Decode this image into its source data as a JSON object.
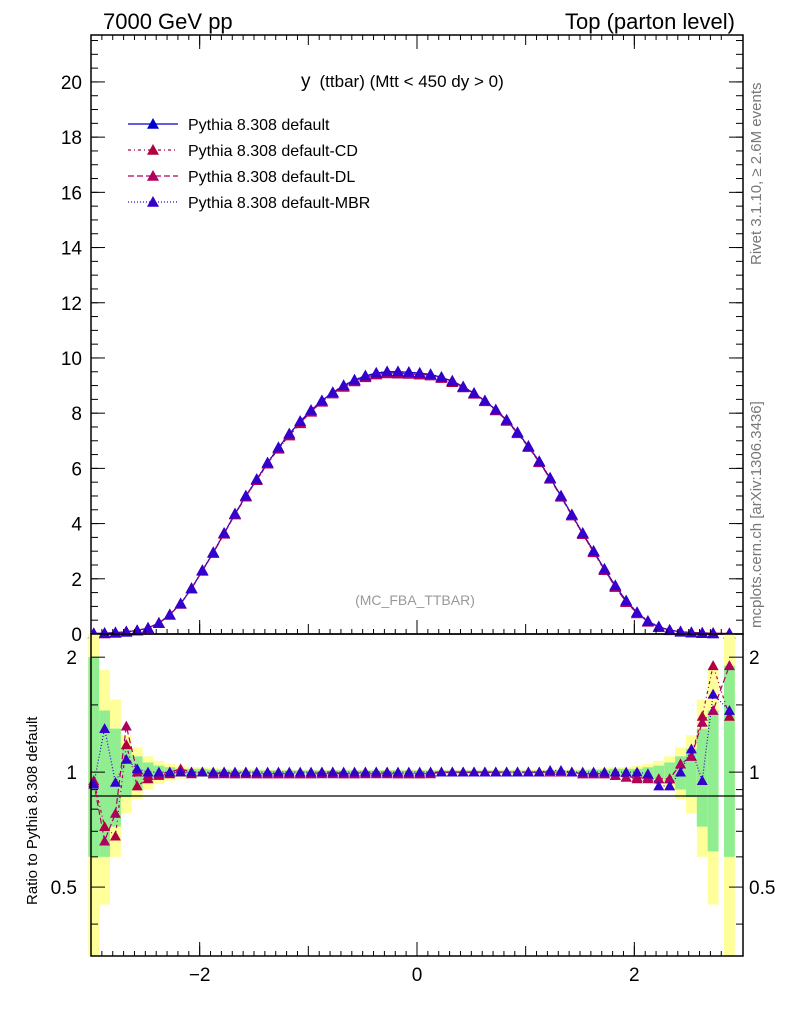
{
  "header": {
    "left": "7000 GeV pp",
    "right": "Top (parton level)"
  },
  "side_text": {
    "rivet": "Rivet 3.1.10, ≥ 2.6M events",
    "mcplots": "mcplots.cern.ch [arXiv:1306.3436]"
  },
  "plot_title": {
    "main": "y",
    "sub": "(ttbar) (Mtt < 450 dy > 0)"
  },
  "watermark": "(MC_FBA_TTBAR)",
  "ratio_ylabel": "Ratio to Pythia 8.308 default",
  "legend": [
    {
      "label": "Pythia 8.308 default",
      "color": "#0000cc",
      "dash": ""
    },
    {
      "label": "Pythia 8.308 default-CD",
      "color": "#b00040",
      "dash": "3,3,1,3"
    },
    {
      "label": "Pythia 8.308 default-DL",
      "color": "#b00060",
      "dash": "6,3"
    },
    {
      "label": "Pythia 8.308 default-MBR",
      "color": "#3300cc",
      "dash": "1,2"
    }
  ],
  "chart_data": {
    "type": "line",
    "xlim": [
      -3.0,
      3.0
    ],
    "main_ylim": [
      0,
      21.7
    ],
    "main_yticks": [
      0,
      2,
      4,
      6,
      8,
      10,
      12,
      14,
      16,
      18,
      20
    ],
    "xticks": [
      -2,
      0,
      2
    ],
    "ratio_ylim": [
      0.33,
      2.3
    ],
    "ratio_ylog": true,
    "ratio_yticks": [
      0.5,
      1,
      2
    ],
    "ratio_band_inner_color": "#90ee90",
    "ratio_band_outer_color": "#ffff99",
    "x": [
      -2.975,
      -2.875,
      -2.775,
      -2.675,
      -2.575,
      -2.475,
      -2.375,
      -2.275,
      -2.175,
      -2.075,
      -1.975,
      -1.875,
      -1.775,
      -1.675,
      -1.575,
      -1.475,
      -1.375,
      -1.275,
      -1.175,
      -1.075,
      -0.975,
      -0.875,
      -0.775,
      -0.675,
      -0.575,
      -0.475,
      -0.375,
      -0.275,
      -0.175,
      -0.075,
      0.025,
      0.125,
      0.225,
      0.325,
      0.425,
      0.525,
      0.625,
      0.725,
      0.825,
      0.925,
      1.025,
      1.125,
      1.225,
      1.325,
      1.425,
      1.525,
      1.625,
      1.725,
      1.825,
      1.925,
      2.025,
      2.125,
      2.225,
      2.325,
      2.425,
      2.525,
      2.625,
      2.725,
      2.875
    ],
    "series": [
      {
        "name": "Pythia 8.308 default",
        "color": "#0000cc",
        "values": [
          0.02,
          0.03,
          0.05,
          0.08,
          0.13,
          0.22,
          0.4,
          0.7,
          1.1,
          1.65,
          2.3,
          2.95,
          3.65,
          4.35,
          5.0,
          5.6,
          6.2,
          6.75,
          7.25,
          7.7,
          8.1,
          8.45,
          8.75,
          9.0,
          9.2,
          9.35,
          9.45,
          9.5,
          9.5,
          9.48,
          9.45,
          9.4,
          9.3,
          9.15,
          8.95,
          8.72,
          8.45,
          8.12,
          7.75,
          7.3,
          6.8,
          6.25,
          5.65,
          5.0,
          4.32,
          3.65,
          3.0,
          2.35,
          1.75,
          1.2,
          0.78,
          0.46,
          0.26,
          0.14,
          0.08,
          0.05,
          0.03,
          0.02,
          0.01
        ]
      },
      {
        "name": "Pythia 8.308 default-CD",
        "color": "#b00040",
        "values": [
          0.019,
          0.022,
          0.045,
          0.09,
          0.12,
          0.21,
          0.39,
          0.69,
          1.1,
          1.64,
          2.29,
          2.94,
          3.64,
          4.33,
          4.98,
          5.57,
          6.17,
          6.72,
          7.19,
          7.63,
          8.05,
          8.42,
          8.72,
          8.96,
          9.16,
          9.32,
          9.42,
          9.46,
          9.45,
          9.43,
          9.4,
          9.36,
          9.27,
          9.12,
          8.93,
          8.7,
          8.43,
          8.1,
          7.73,
          7.28,
          6.78,
          6.23,
          5.63,
          4.98,
          4.3,
          3.62,
          2.96,
          2.31,
          1.71,
          1.16,
          0.75,
          0.45,
          0.25,
          0.14,
          0.085,
          0.055,
          0.04,
          0.03,
          0.02
        ]
      },
      {
        "name": "Pythia 8.308 default-DL",
        "color": "#b00060",
        "values": [
          0.02,
          0.025,
          0.04,
          0.085,
          0.125,
          0.215,
          0.39,
          0.7,
          1.09,
          1.64,
          2.29,
          2.93,
          3.63,
          4.33,
          4.98,
          5.58,
          6.18,
          6.71,
          7.2,
          7.64,
          8.06,
          8.41,
          8.71,
          8.95,
          9.15,
          9.3,
          9.4,
          9.44,
          9.43,
          9.42,
          9.4,
          9.38,
          9.28,
          9.18,
          8.96,
          8.71,
          8.44,
          8.11,
          7.72,
          7.27,
          6.77,
          6.22,
          5.62,
          4.97,
          4.29,
          3.62,
          2.97,
          2.32,
          1.7,
          1.15,
          0.75,
          0.44,
          0.25,
          0.135,
          0.085,
          0.055,
          0.04,
          0.03,
          0.02
        ]
      },
      {
        "name": "Pythia 8.308 default-MBR",
        "color": "#3300cc",
        "values": [
          0.02,
          0.032,
          0.055,
          0.08,
          0.13,
          0.22,
          0.4,
          0.7,
          1.1,
          1.66,
          2.31,
          2.96,
          3.66,
          4.36,
          5.01,
          5.61,
          6.21,
          6.76,
          7.26,
          7.71,
          8.11,
          8.46,
          8.76,
          9.01,
          9.21,
          9.36,
          9.46,
          9.51,
          9.51,
          9.49,
          9.46,
          9.41,
          9.31,
          9.16,
          8.96,
          8.73,
          8.46,
          8.13,
          7.76,
          7.31,
          6.81,
          6.26,
          5.66,
          5.01,
          4.33,
          3.66,
          3.01,
          2.36,
          1.76,
          1.21,
          0.79,
          0.47,
          0.27,
          0.145,
          0.085,
          0.055,
          0.035,
          0.025,
          0.014
        ]
      }
    ],
    "ratio_series": [
      {
        "name": "Pythia 8.308 default-CD",
        "color": "#b00040",
        "values": [
          0.95,
          0.72,
          0.68,
          1.18,
          0.92,
          0.96,
          0.98,
          0.99,
          1.0,
          0.99,
          1.0,
          0.99,
          1.0,
          0.99,
          0.99,
          0.99,
          0.99,
          0.99,
          0.99,
          0.99,
          0.99,
          1.0,
          1.0,
          0.99,
          0.99,
          1.0,
          1.0,
          1.0,
          0.99,
          0.99,
          0.99,
          1.0,
          1.0,
          1.0,
          1.0,
          1.0,
          1.0,
          1.0,
          1.0,
          1.0,
          1.0,
          1.0,
          1.0,
          1.0,
          1.0,
          0.99,
          0.99,
          0.99,
          0.98,
          0.97,
          0.96,
          0.97,
          0.96,
          0.96,
          1.05,
          1.1,
          1.4,
          1.9,
          1.4
        ]
      },
      {
        "name": "Pythia 8.308 default-DL",
        "color": "#b00060",
        "values": [
          0.94,
          0.66,
          0.78,
          1.32,
          1.0,
          0.98,
          0.99,
          1.0,
          1.02,
          1.0,
          1.0,
          0.99,
          0.99,
          0.99,
          1.0,
          0.99,
          0.99,
          0.99,
          0.99,
          0.99,
          0.99,
          0.99,
          0.99,
          0.99,
          0.99,
          0.99,
          0.99,
          0.99,
          0.99,
          0.99,
          0.99,
          0.99,
          1.0,
          1.0,
          1.0,
          1.0,
          1.0,
          1.0,
          1.0,
          1.0,
          1.0,
          1.0,
          1.0,
          1.0,
          1.0,
          0.99,
          0.99,
          0.99,
          0.98,
          0.97,
          0.97,
          0.96,
          0.96,
          0.96,
          1.05,
          1.1,
          1.35,
          1.45,
          1.9
        ]
      },
      {
        "name": "Pythia 8.308 default-MBR",
        "color": "#3300cc",
        "values": [
          0.93,
          1.3,
          0.94,
          1.08,
          1.02,
          1.0,
          1.0,
          1.0,
          1.0,
          1.0,
          1.0,
          1.0,
          1.0,
          1.0,
          1.0,
          1.0,
          1.0,
          1.0,
          1.0,
          1.0,
          1.0,
          1.0,
          1.0,
          1.0,
          1.0,
          1.0,
          1.0,
          1.0,
          1.0,
          1.0,
          1.0,
          1.0,
          1.0,
          1.0,
          1.0,
          1.0,
          1.0,
          1.0,
          1.0,
          1.0,
          1.0,
          1.0,
          1.01,
          1.01,
          1.0,
          1.0,
          1.0,
          1.0,
          1.0,
          1.0,
          1.0,
          0.99,
          0.92,
          0.92,
          1.0,
          1.15,
          0.95,
          1.6,
          1.45
        ]
      }
    ],
    "ratio_band_inner": [
      0.6,
      0.6,
      0.72,
      0.86,
      0.9,
      0.94,
      0.96,
      0.97,
      0.98,
      0.98,
      0.98,
      0.985,
      0.985,
      0.99,
      0.99,
      0.99,
      0.99,
      0.99,
      0.99,
      0.99,
      0.99,
      0.99,
      0.99,
      0.99,
      0.99,
      0.99,
      0.99,
      0.99,
      0.99,
      0.99,
      0.99,
      0.99,
      0.99,
      0.99,
      0.99,
      0.99,
      0.99,
      0.99,
      0.99,
      0.99,
      0.99,
      0.99,
      0.99,
      0.99,
      0.99,
      0.99,
      0.985,
      0.985,
      0.98,
      0.98,
      0.98,
      0.97,
      0.96,
      0.94,
      0.9,
      0.86,
      0.72,
      0.62,
      0.6
    ],
    "ratio_band_inner_hi": [
      2.0,
      1.45,
      1.3,
      1.15,
      1.1,
      1.06,
      1.04,
      1.03,
      1.02,
      1.02,
      1.02,
      1.015,
      1.015,
      1.01,
      1.01,
      1.01,
      1.01,
      1.01,
      1.01,
      1.01,
      1.01,
      1.01,
      1.01,
      1.01,
      1.01,
      1.01,
      1.01,
      1.01,
      1.01,
      1.01,
      1.01,
      1.01,
      1.01,
      1.01,
      1.01,
      1.01,
      1.01,
      1.01,
      1.01,
      1.01,
      1.01,
      1.01,
      1.01,
      1.01,
      1.01,
      1.01,
      1.015,
      1.015,
      1.02,
      1.02,
      1.02,
      1.03,
      1.04,
      1.06,
      1.1,
      1.15,
      1.3,
      1.45,
      1.9
    ],
    "ratio_band_outer": [
      0.33,
      0.45,
      0.6,
      0.78,
      0.85,
      0.9,
      0.93,
      0.95,
      0.96,
      0.97,
      0.97,
      0.975,
      0.98,
      0.98,
      0.98,
      0.98,
      0.985,
      0.985,
      0.985,
      0.985,
      0.985,
      0.985,
      0.985,
      0.985,
      0.985,
      0.985,
      0.985,
      0.985,
      0.985,
      0.985,
      0.985,
      0.985,
      0.985,
      0.985,
      0.985,
      0.985,
      0.985,
      0.985,
      0.985,
      0.985,
      0.985,
      0.985,
      0.985,
      0.98,
      0.98,
      0.98,
      0.98,
      0.975,
      0.97,
      0.97,
      0.96,
      0.95,
      0.93,
      0.9,
      0.85,
      0.78,
      0.6,
      0.45,
      0.33
    ],
    "ratio_band_outer_hi": [
      2.3,
      1.85,
      1.55,
      1.25,
      1.16,
      1.1,
      1.07,
      1.05,
      1.04,
      1.03,
      1.03,
      1.025,
      1.02,
      1.02,
      1.02,
      1.02,
      1.015,
      1.015,
      1.015,
      1.015,
      1.015,
      1.015,
      1.015,
      1.015,
      1.015,
      1.015,
      1.015,
      1.015,
      1.015,
      1.015,
      1.015,
      1.015,
      1.015,
      1.015,
      1.015,
      1.015,
      1.015,
      1.015,
      1.015,
      1.015,
      1.015,
      1.015,
      1.015,
      1.02,
      1.02,
      1.02,
      1.02,
      1.025,
      1.03,
      1.03,
      1.04,
      1.05,
      1.07,
      1.1,
      1.16,
      1.25,
      1.55,
      1.85,
      2.3
    ]
  }
}
